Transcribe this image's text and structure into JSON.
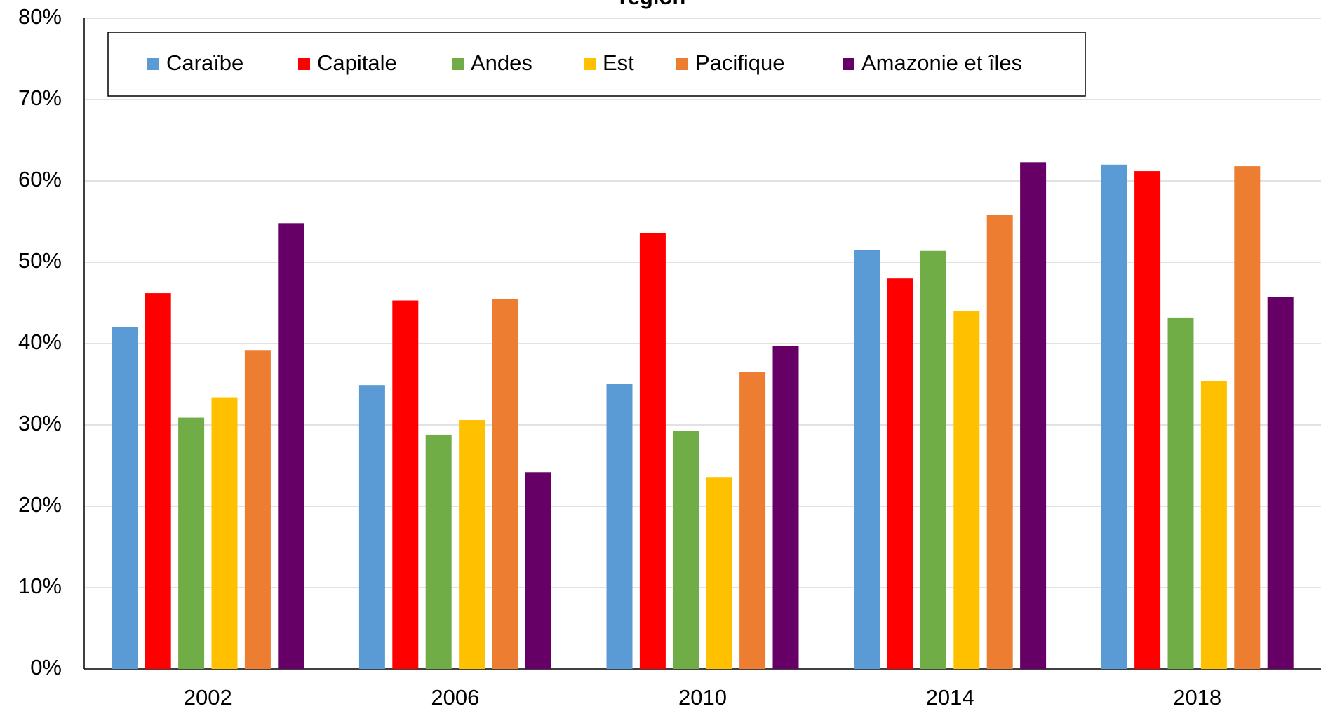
{
  "chart_data": {
    "type": "bar",
    "title": "région",
    "categories": [
      "2002",
      "2006",
      "2010",
      "2014",
      "2018"
    ],
    "series": [
      {
        "name": "Caraïbe",
        "color": "#5b9bd5",
        "values": [
          42,
          34.9,
          35,
          51.5,
          62
        ]
      },
      {
        "name": "Capitale",
        "color": "#ff0000",
        "values": [
          46.2,
          45.3,
          53.6,
          48,
          61.2
        ]
      },
      {
        "name": "Andes",
        "color": "#70ad47",
        "values": [
          30.9,
          28.8,
          29.3,
          51.4,
          43.2
        ]
      },
      {
        "name": "Est",
        "color": "#ffc000",
        "values": [
          33.4,
          30.6,
          23.6,
          44,
          35.4
        ]
      },
      {
        "name": "Pacifique",
        "color": "#ed7d31",
        "values": [
          39.2,
          45.5,
          36.5,
          55.8,
          61.8
        ]
      },
      {
        "name": "Amazonie et îles",
        "color": "#660066",
        "values": [
          54.8,
          24.2,
          39.7,
          62.3,
          45.7
        ]
      }
    ],
    "ylim": [
      0,
      80
    ],
    "yticks": [
      {
        "value": 0,
        "label": "0%"
      },
      {
        "value": 10,
        "label": "10%"
      },
      {
        "value": 20,
        "label": "20%"
      },
      {
        "value": 30,
        "label": "30%"
      },
      {
        "value": 40,
        "label": "40%"
      },
      {
        "value": 50,
        "label": "50%"
      },
      {
        "value": 60,
        "label": "60%"
      },
      {
        "value": 70,
        "label": "70%"
      },
      {
        "value": 80,
        "label": "80%"
      }
    ],
    "grid": true,
    "legend": "top"
  }
}
